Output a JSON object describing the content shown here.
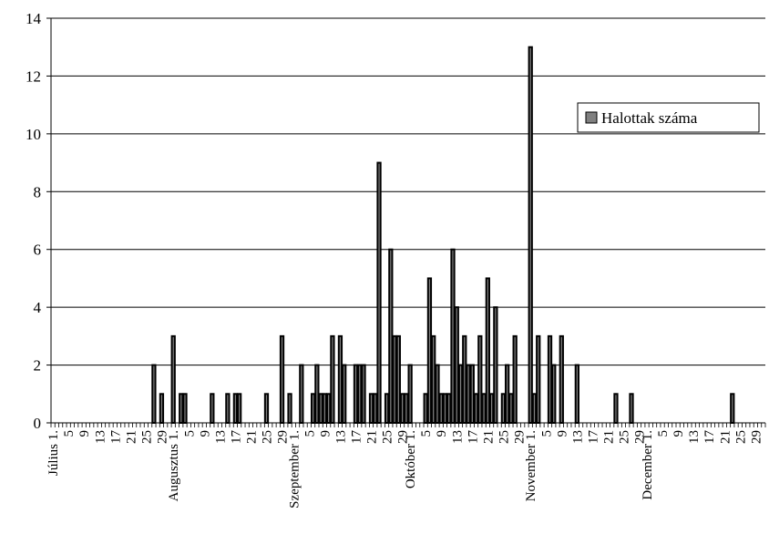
{
  "chart_data": {
    "type": "bar",
    "legend": {
      "label": "Halottak száma",
      "position": "right"
    },
    "ylim": [
      0,
      14
    ],
    "yticks": [
      0,
      2,
      4,
      6,
      8,
      10,
      12,
      14
    ],
    "grid": true,
    "colors": {
      "bar_fill": "#808080",
      "bar_stroke": "#000000",
      "grid": "#000000",
      "background": "#ffffff"
    },
    "start_date": "07-01",
    "num_days": 184,
    "x_tick_labels": [
      {
        "day": 0,
        "label": "Július 1."
      },
      {
        "day": 4,
        "label": "5"
      },
      {
        "day": 8,
        "label": "9"
      },
      {
        "day": 12,
        "label": "13"
      },
      {
        "day": 16,
        "label": "17"
      },
      {
        "day": 20,
        "label": "21"
      },
      {
        "day": 24,
        "label": "25"
      },
      {
        "day": 28,
        "label": "29"
      },
      {
        "day": 31,
        "label": "Augusztus 1."
      },
      {
        "day": 35,
        "label": "5"
      },
      {
        "day": 39,
        "label": "9"
      },
      {
        "day": 43,
        "label": "13"
      },
      {
        "day": 47,
        "label": "17"
      },
      {
        "day": 51,
        "label": "21"
      },
      {
        "day": 55,
        "label": "25"
      },
      {
        "day": 59,
        "label": "29"
      },
      {
        "day": 62,
        "label": "Szeptember 1."
      },
      {
        "day": 66,
        "label": "5"
      },
      {
        "day": 70,
        "label": "9"
      },
      {
        "day": 74,
        "label": "13"
      },
      {
        "day": 78,
        "label": "17"
      },
      {
        "day": 82,
        "label": "21"
      },
      {
        "day": 86,
        "label": "25"
      },
      {
        "day": 90,
        "label": "29"
      },
      {
        "day": 92,
        "label": "Október 1."
      },
      {
        "day": 96,
        "label": "5"
      },
      {
        "day": 100,
        "label": "9"
      },
      {
        "day": 104,
        "label": "13"
      },
      {
        "day": 108,
        "label": "17"
      },
      {
        "day": 112,
        "label": "21"
      },
      {
        "day": 116,
        "label": "25"
      },
      {
        "day": 120,
        "label": "29"
      },
      {
        "day": 123,
        "label": "November 1."
      },
      {
        "day": 127,
        "label": "5"
      },
      {
        "day": 131,
        "label": "9"
      },
      {
        "day": 135,
        "label": "13"
      },
      {
        "day": 139,
        "label": "17"
      },
      {
        "day": 143,
        "label": "21"
      },
      {
        "day": 147,
        "label": "25"
      },
      {
        "day": 151,
        "label": "29"
      },
      {
        "day": 153,
        "label": "December 1."
      },
      {
        "day": 157,
        "label": "5"
      },
      {
        "day": 161,
        "label": "9"
      },
      {
        "day": 165,
        "label": "13"
      },
      {
        "day": 169,
        "label": "17"
      },
      {
        "day": 173,
        "label": "21"
      },
      {
        "day": 177,
        "label": "25"
      },
      {
        "day": 181,
        "label": "29"
      }
    ],
    "points": [
      {
        "day": 26,
        "value": 2
      },
      {
        "day": 28,
        "value": 1
      },
      {
        "day": 31,
        "value": 3
      },
      {
        "day": 33,
        "value": 1
      },
      {
        "day": 34,
        "value": 1
      },
      {
        "day": 41,
        "value": 1
      },
      {
        "day": 45,
        "value": 1
      },
      {
        "day": 47,
        "value": 1
      },
      {
        "day": 48,
        "value": 1
      },
      {
        "day": 55,
        "value": 1
      },
      {
        "day": 59,
        "value": 3
      },
      {
        "day": 61,
        "value": 1
      },
      {
        "day": 64,
        "value": 2
      },
      {
        "day": 67,
        "value": 1
      },
      {
        "day": 68,
        "value": 2
      },
      {
        "day": 69,
        "value": 1
      },
      {
        "day": 70,
        "value": 1
      },
      {
        "day": 71,
        "value": 1
      },
      {
        "day": 72,
        "value": 3
      },
      {
        "day": 74,
        "value": 3
      },
      {
        "day": 75,
        "value": 2
      },
      {
        "day": 78,
        "value": 2
      },
      {
        "day": 79,
        "value": 2
      },
      {
        "day": 80,
        "value": 2
      },
      {
        "day": 82,
        "value": 1
      },
      {
        "day": 83,
        "value": 1
      },
      {
        "day": 84,
        "value": 9
      },
      {
        "day": 86,
        "value": 1
      },
      {
        "day": 87,
        "value": 6
      },
      {
        "day": 88,
        "value": 3
      },
      {
        "day": 89,
        "value": 3
      },
      {
        "day": 90,
        "value": 1
      },
      {
        "day": 91,
        "value": 1
      },
      {
        "day": 92,
        "value": 2
      },
      {
        "day": 96,
        "value": 1
      },
      {
        "day": 97,
        "value": 5
      },
      {
        "day": 98,
        "value": 3
      },
      {
        "day": 99,
        "value": 2
      },
      {
        "day": 100,
        "value": 1
      },
      {
        "day": 101,
        "value": 1
      },
      {
        "day": 102,
        "value": 1
      },
      {
        "day": 103,
        "value": 6
      },
      {
        "day": 104,
        "value": 4
      },
      {
        "day": 105,
        "value": 2
      },
      {
        "day": 106,
        "value": 3
      },
      {
        "day": 107,
        "value": 2
      },
      {
        "day": 108,
        "value": 2
      },
      {
        "day": 109,
        "value": 1
      },
      {
        "day": 110,
        "value": 3
      },
      {
        "day": 111,
        "value": 1
      },
      {
        "day": 112,
        "value": 5
      },
      {
        "day": 113,
        "value": 1
      },
      {
        "day": 114,
        "value": 4
      },
      {
        "day": 116,
        "value": 1
      },
      {
        "day": 117,
        "value": 2
      },
      {
        "day": 118,
        "value": 1
      },
      {
        "day": 119,
        "value": 3
      },
      {
        "day": 123,
        "value": 13
      },
      {
        "day": 124,
        "value": 1
      },
      {
        "day": 125,
        "value": 3
      },
      {
        "day": 128,
        "value": 3
      },
      {
        "day": 129,
        "value": 2
      },
      {
        "day": 131,
        "value": 3
      },
      {
        "day": 135,
        "value": 2
      },
      {
        "day": 145,
        "value": 1
      },
      {
        "day": 149,
        "value": 1
      },
      {
        "day": 175,
        "value": 1
      }
    ]
  }
}
